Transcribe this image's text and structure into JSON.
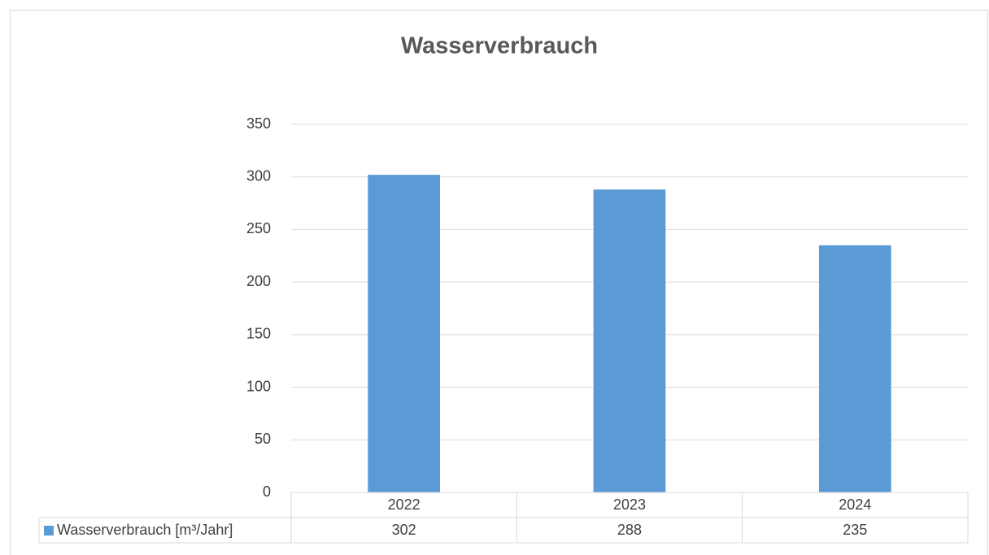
{
  "chart_data": {
    "type": "bar",
    "title": "Wasserverbrauch",
    "categories": [
      "2022",
      "2023",
      "2024"
    ],
    "series": [
      {
        "name": "Wasserverbrauch [m³/Jahr]",
        "color": "#5b9bd5",
        "values": [
          302,
          288,
          235
        ]
      }
    ],
    "ylim": [
      0,
      350
    ],
    "yticks": [
      0,
      50,
      100,
      150,
      200,
      250,
      300,
      350
    ],
    "grid": true
  }
}
